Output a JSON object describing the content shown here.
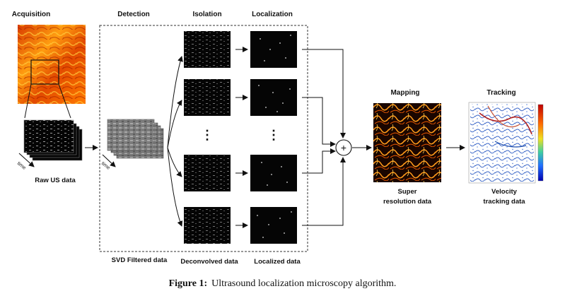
{
  "stages": {
    "acquisition": "Acquisition",
    "detection": "Detection",
    "isolation": "Isolation",
    "localization": "Localization",
    "mapping": "Mapping",
    "tracking": "Tracking"
  },
  "data_labels": {
    "raw_us": "Raw US data",
    "svd_filtered": "SVD Filtered data",
    "deconvolved": "Deconvolved data",
    "localized": "Localized data",
    "super_resolution_line1": "Super",
    "super_resolution_line2": "resolution data",
    "velocity_line1": "Velocity",
    "velocity_line2": "tracking data"
  },
  "axis_labels": {
    "time_raw": "time",
    "time_svd": "time"
  },
  "vertical_ellipsis": "⋮",
  "sum_symbol": "+",
  "caption": {
    "label": "Figure 1:",
    "text": "Ultrasound localization microscopy algorithm."
  },
  "colors": {
    "acquisition_hot": "#ff8a00",
    "acquisition_dark": "#c41e00",
    "frame_black": "#050505",
    "svd_gray": "#8a8a8a",
    "mapping_orange": "#ff9a1a",
    "arrow": "#111111",
    "dashed_box": "#333333",
    "colorbar_top": "#c00000",
    "colorbar_bottom": "#0000b0",
    "velocity_blue": "#3a66c8",
    "velocity_red": "#b02020"
  }
}
